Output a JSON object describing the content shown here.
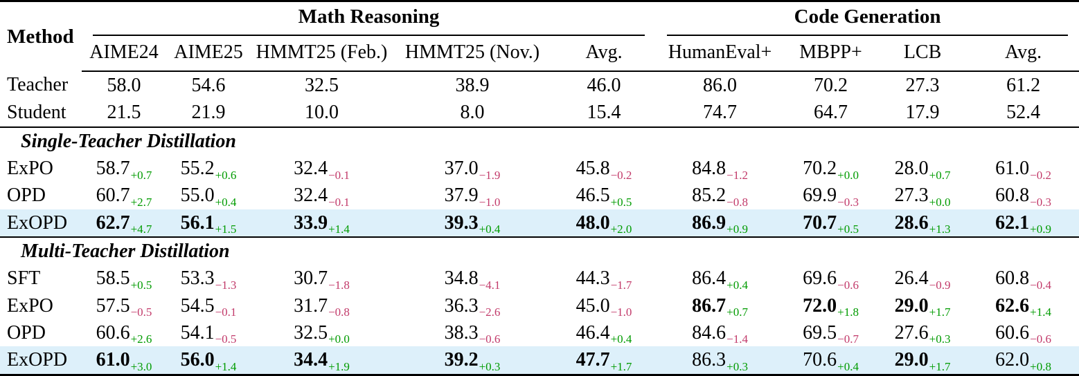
{
  "colors": {
    "positive_delta": "#009b00",
    "negative_delta": "#c23a6a",
    "highlight_row": "#ddf0fa"
  },
  "table": {
    "method_header": "Method",
    "groups": [
      {
        "label": "Math Reasoning",
        "colspan": 5
      },
      {
        "label": "Code Generation",
        "colspan": 4
      }
    ],
    "columns": [
      "AIME24",
      "AIME25",
      "HMMT25 (Feb.)",
      "HMMT25 (Nov.)",
      "Avg.",
      "HumanEval+",
      "MBPP+",
      "LCB",
      "Avg."
    ],
    "baseline_rows": [
      {
        "method": "Teacher",
        "values": [
          "58.0",
          "54.6",
          "32.5",
          "38.9",
          "46.0",
          "86.0",
          "70.2",
          "27.3",
          "61.2"
        ]
      },
      {
        "method": "Student",
        "values": [
          "21.5",
          "21.9",
          "10.0",
          "8.0",
          "15.4",
          "74.7",
          "64.7",
          "17.9",
          "52.4"
        ]
      }
    ],
    "sections": [
      {
        "title": "Single-Teacher Distillation",
        "rows": [
          {
            "method": "ExPO",
            "highlight": false,
            "cells": [
              {
                "v": "58.7",
                "d": "+0.7",
                "b": false
              },
              {
                "v": "55.2",
                "d": "+0.6",
                "b": false
              },
              {
                "v": "32.4",
                "d": "−0.1",
                "b": false
              },
              {
                "v": "37.0",
                "d": "−1.9",
                "b": false
              },
              {
                "v": "45.8",
                "d": "−0.2",
                "b": false
              },
              {
                "v": "84.8",
                "d": "−1.2",
                "b": false
              },
              {
                "v": "70.2",
                "d": "+0.0",
                "b": false
              },
              {
                "v": "28.0",
                "d": "+0.7",
                "b": false
              },
              {
                "v": "61.0",
                "d": "−0.2",
                "b": false
              }
            ]
          },
          {
            "method": "OPD",
            "highlight": false,
            "cells": [
              {
                "v": "60.7",
                "d": "+2.7",
                "b": false
              },
              {
                "v": "55.0",
                "d": "+0.4",
                "b": false
              },
              {
                "v": "32.4",
                "d": "−0.1",
                "b": false
              },
              {
                "v": "37.9",
                "d": "−1.0",
                "b": false
              },
              {
                "v": "46.5",
                "d": "+0.5",
                "b": false
              },
              {
                "v": "85.2",
                "d": "−0.8",
                "b": false
              },
              {
                "v": "69.9",
                "d": "−0.3",
                "b": false
              },
              {
                "v": "27.3",
                "d": "+0.0",
                "b": false
              },
              {
                "v": "60.8",
                "d": "−0.3",
                "b": false
              }
            ]
          },
          {
            "method": "ExOPD",
            "highlight": true,
            "cells": [
              {
                "v": "62.7",
                "d": "+4.7",
                "b": true
              },
              {
                "v": "56.1",
                "d": "+1.5",
                "b": true
              },
              {
                "v": "33.9",
                "d": "+1.4",
                "b": true
              },
              {
                "v": "39.3",
                "d": "+0.4",
                "b": true
              },
              {
                "v": "48.0",
                "d": "+2.0",
                "b": true
              },
              {
                "v": "86.9",
                "d": "+0.9",
                "b": true
              },
              {
                "v": "70.7",
                "d": "+0.5",
                "b": true
              },
              {
                "v": "28.6",
                "d": "+1.3",
                "b": true
              },
              {
                "v": "62.1",
                "d": "+0.9",
                "b": true
              }
            ]
          }
        ]
      },
      {
        "title": "Multi-Teacher Distillation",
        "rows": [
          {
            "method": "SFT",
            "highlight": false,
            "cells": [
              {
                "v": "58.5",
                "d": "+0.5",
                "b": false
              },
              {
                "v": "53.3",
                "d": "−1.3",
                "b": false
              },
              {
                "v": "30.7",
                "d": "−1.8",
                "b": false
              },
              {
                "v": "34.8",
                "d": "−4.1",
                "b": false
              },
              {
                "v": "44.3",
                "d": "−1.7",
                "b": false
              },
              {
                "v": "86.4",
                "d": "+0.4",
                "b": false
              },
              {
                "v": "69.6",
                "d": "−0.6",
                "b": false
              },
              {
                "v": "26.4",
                "d": "−0.9",
                "b": false
              },
              {
                "v": "60.8",
                "d": "−0.4",
                "b": false
              }
            ]
          },
          {
            "method": "ExPO",
            "highlight": false,
            "cells": [
              {
                "v": "57.5",
                "d": "−0.5",
                "b": false
              },
              {
                "v": "54.5",
                "d": "−0.1",
                "b": false
              },
              {
                "v": "31.7",
                "d": "−0.8",
                "b": false
              },
              {
                "v": "36.3",
                "d": "−2.6",
                "b": false
              },
              {
                "v": "45.0",
                "d": "−1.0",
                "b": false
              },
              {
                "v": "86.7",
                "d": "+0.7",
                "b": true
              },
              {
                "v": "72.0",
                "d": "+1.8",
                "b": true
              },
              {
                "v": "29.0",
                "d": "+1.7",
                "b": true
              },
              {
                "v": "62.6",
                "d": "+1.4",
                "b": true
              }
            ]
          },
          {
            "method": "OPD",
            "highlight": false,
            "cells": [
              {
                "v": "60.6",
                "d": "+2.6",
                "b": false
              },
              {
                "v": "54.1",
                "d": "−0.5",
                "b": false
              },
              {
                "v": "32.5",
                "d": "+0.0",
                "b": false
              },
              {
                "v": "38.3",
                "d": "−0.6",
                "b": false
              },
              {
                "v": "46.4",
                "d": "+0.4",
                "b": false
              },
              {
                "v": "84.6",
                "d": "−1.4",
                "b": false
              },
              {
                "v": "69.5",
                "d": "−0.7",
                "b": false
              },
              {
                "v": "27.6",
                "d": "+0.3",
                "b": false
              },
              {
                "v": "60.6",
                "d": "−0.6",
                "b": false
              }
            ]
          },
          {
            "method": "ExOPD",
            "highlight": true,
            "cells": [
              {
                "v": "61.0",
                "d": "+3.0",
                "b": true
              },
              {
                "v": "56.0",
                "d": "+1.4",
                "b": true
              },
              {
                "v": "34.4",
                "d": "+1.9",
                "b": true
              },
              {
                "v": "39.2",
                "d": "+0.3",
                "b": true
              },
              {
                "v": "47.7",
                "d": "+1.7",
                "b": true
              },
              {
                "v": "86.3",
                "d": "+0.3",
                "b": false
              },
              {
                "v": "70.6",
                "d": "+0.4",
                "b": false
              },
              {
                "v": "29.0",
                "d": "+1.7",
                "b": true
              },
              {
                "v": "62.0",
                "d": "+0.8",
                "b": false
              }
            ]
          }
        ]
      }
    ]
  }
}
